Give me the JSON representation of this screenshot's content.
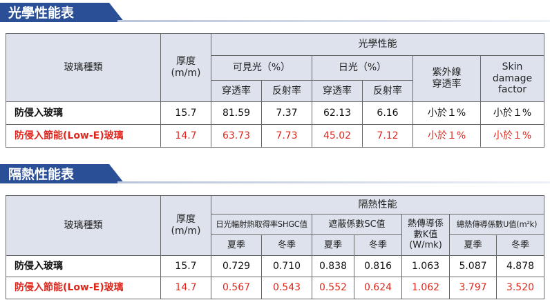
{
  "sections": [
    {
      "title": "光學性能表",
      "header": [
        "玻璃種類",
        "厚度\n(m/m)",
        "光學性能",
        "可見光（%）",
        "日光（%）",
        "紫外線\n穿透率",
        "Skin\ndamage\nfactor",
        "穿透率",
        "反射率",
        "穿透率",
        "反射率"
      ],
      "rows": [
        [
          "防侵入玻璃",
          "15.7",
          "81.59",
          "7.37",
          "62.13",
          "6.16",
          "小於１%",
          "小於１%"
        ],
        [
          "防侵入節能(Low-E)玻璃",
          "14.7",
          "63.73",
          "7.73",
          "45.02",
          "7.12",
          "小於１%",
          "小於１%"
        ]
      ]
    },
    {
      "title": "隔熱性能表",
      "header": [
        "玻璃種類",
        "厚度\n(m/m)",
        "隔熱性能",
        "日光輻射熱取得率SHGC值",
        "遮蔽係數SC值",
        "熱傳導係\n數K值\n(W/mk)",
        "總熱傳導係數U值(m²k)",
        "夏季",
        "冬季",
        "夏季",
        "冬季",
        "夏季",
        "冬季"
      ],
      "rows": [
        [
          "防侵入玻璃",
          "15.7",
          "0.729",
          "0.710",
          "0.838",
          "0.816",
          "1.063",
          "5.087",
          "4.878"
        ],
        [
          "防侵入節能(Low-E)玻璃",
          "14.7",
          "0.567",
          "0.543",
          "0.552",
          "0.624",
          "1.062",
          "3.797",
          "3.520"
        ]
      ]
    }
  ]
}
